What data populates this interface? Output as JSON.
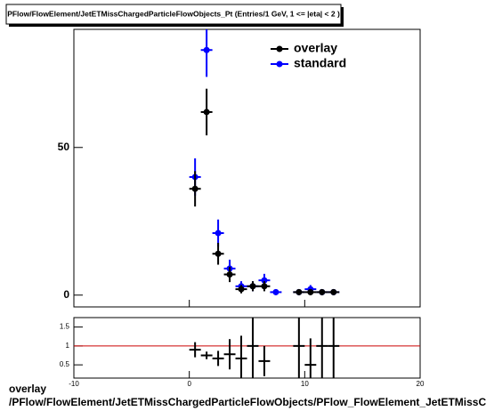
{
  "chart_data": [
    {
      "type": "errorbar",
      "title": "PFlow/FlowElement/JetETMissChargedParticleFlowObjects_Pt (Entries/1 GeV,  1 <= |eta| < 2 )",
      "x": [
        0.5,
        1.5,
        2.5,
        3.5,
        4.5,
        5.5,
        6.5,
        7.5,
        8.5,
        9.5,
        10.5,
        11.5,
        12.5
      ],
      "xerr": 0.5,
      "series": [
        {
          "name": "overlay",
          "color": "#000000",
          "values": [
            36,
            62,
            14,
            7,
            2,
            3,
            3,
            null,
            null,
            1,
            1,
            1,
            1
          ],
          "errors": [
            6,
            7.9,
            3.7,
            2.6,
            1.4,
            1.7,
            1.7,
            null,
            null,
            1,
            1,
            1,
            1
          ]
        },
        {
          "name": "standard",
          "color": "#0000ff",
          "values": [
            40,
            83,
            21,
            9,
            3,
            3,
            5,
            1,
            null,
            1,
            2,
            1,
            1
          ],
          "errors": [
            6.3,
            9.1,
            4.6,
            3,
            1.7,
            1.7,
            2.2,
            1,
            null,
            1,
            1.4,
            1,
            1
          ]
        }
      ],
      "xlim": [
        -10,
        20
      ],
      "xticks": [
        -10,
        0,
        10,
        20
      ],
      "ylim": [
        -4,
        90
      ],
      "yticks": [
        0,
        50
      ],
      "legend": "top-right"
    },
    {
      "type": "ratio",
      "x": [
        0.5,
        1.5,
        2.5,
        3.5,
        4.5,
        5.5,
        6.5,
        7.5,
        8.5,
        9.5,
        10.5,
        11.5,
        12.5
      ],
      "xerr": 0.5,
      "values": [
        0.9,
        0.75,
        0.67,
        0.78,
        0.67,
        1,
        0.6,
        null,
        null,
        1,
        0.5,
        1,
        1
      ],
      "errors": [
        0.2,
        0.1,
        0.2,
        0.4,
        0.6,
        1.1,
        0.4,
        null,
        null,
        1.4,
        0.7,
        1.4,
        1.4
      ],
      "color": "#000000",
      "reference": 1,
      "reference_color": "#cc0000",
      "xlim": [
        -10,
        20
      ],
      "xticks": [
        -10,
        0,
        10,
        20
      ],
      "ylim": [
        0.15,
        1.75
      ],
      "yticks": [
        0.5,
        1,
        1.5
      ],
      "xlabel": [
        "overlay",
        "/PFlow/FlowElement/JetETMissChargedParticleFlowObjects/PFlow_FlowElement_JetETMissChargedParticleFlowObjects_Pt"
      ]
    }
  ]
}
